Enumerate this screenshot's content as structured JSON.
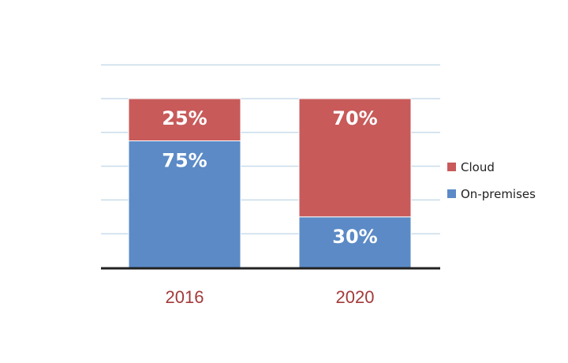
{
  "chart_data": {
    "type": "bar",
    "stacked": true,
    "categories": [
      "2016",
      "2020"
    ],
    "series": [
      {
        "name": "On-premises",
        "values": [
          75,
          30
        ],
        "labels": [
          "75%",
          "30%"
        ],
        "color": "#5b8ac6"
      },
      {
        "name": "Cloud",
        "values": [
          25,
          70
        ],
        "labels": [
          "25%",
          "70%"
        ],
        "color": "#c85a5a"
      }
    ],
    "ylim": [
      0,
      100
    ],
    "gridlines": "horizontal",
    "legend": "right",
    "legend_order": [
      "Cloud",
      "On-premises"
    ],
    "category_label_color": "#a33a3a",
    "axis_color": "#222222",
    "grid_color": "#c9dcea"
  }
}
